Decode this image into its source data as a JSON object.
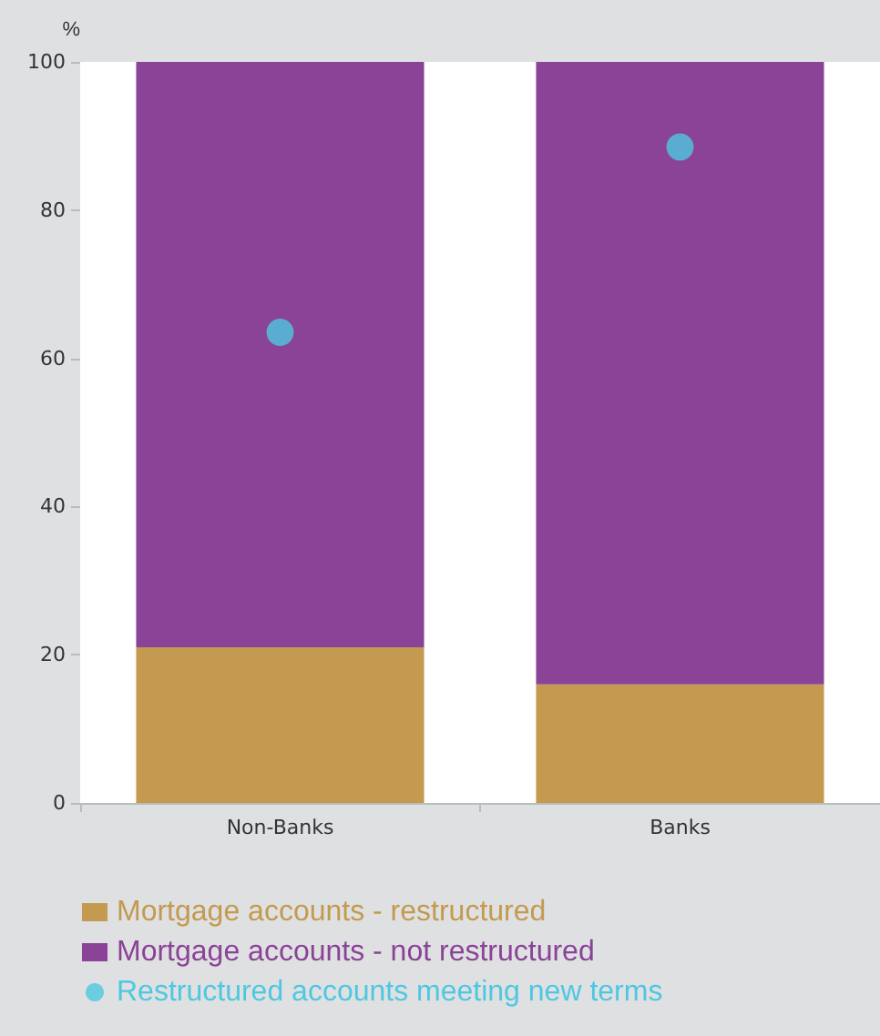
{
  "chart_data": {
    "type": "bar",
    "stacked": true,
    "ylabel": "%",
    "categories": [
      "Non-Banks",
      "Banks"
    ],
    "series": [
      {
        "name": "Mortgage accounts - restructured",
        "color": "#c39a4f",
        "values": [
          21,
          16
        ]
      },
      {
        "name": "Mortgage accounts - not restructured",
        "color": "#8a4397",
        "values": [
          79,
          84
        ]
      },
      {
        "name": "Restructured accounts meeting new terms",
        "type": "scatter",
        "marker": "circle",
        "color": "#4ec8e0",
        "x": [
          "Non-Banks",
          "Banks"
        ],
        "values": [
          63.5,
          88.5
        ]
      }
    ],
    "ylim": [
      0,
      100
    ],
    "yticks": [
      0,
      20,
      40,
      60,
      80,
      100
    ],
    "grid": false,
    "legend": "bottom"
  }
}
